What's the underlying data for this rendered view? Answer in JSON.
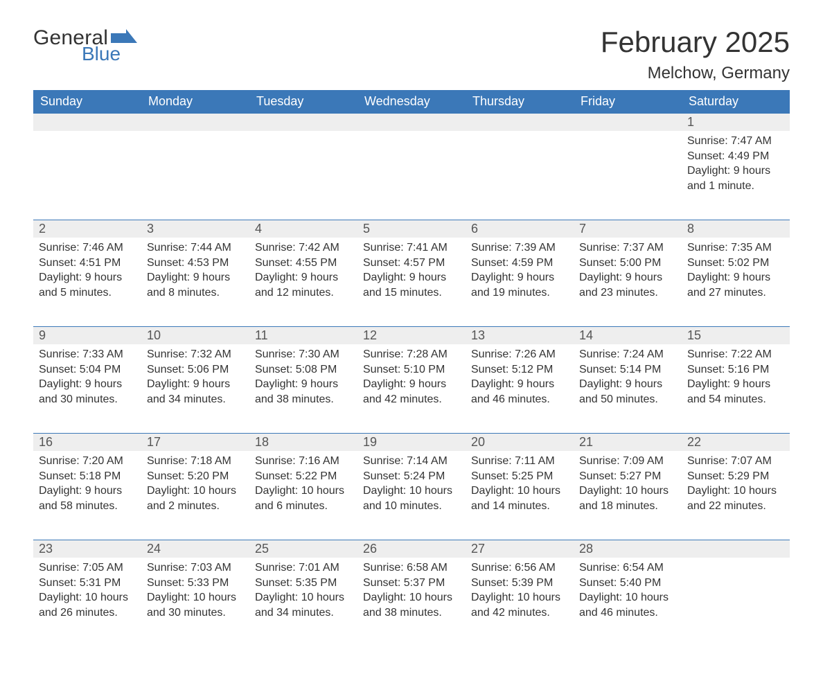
{
  "brand": {
    "word1": "General",
    "word2": "Blue",
    "accent_color": "#3b78b8",
    "text_color": "#333333"
  },
  "title": {
    "month_year": "February 2025",
    "location": "Melchow, Germany",
    "title_fontsize": 42,
    "location_fontsize": 24
  },
  "style": {
    "header_bg": "#3b78b8",
    "header_fg": "#ffffff",
    "daynum_bg": "#eeeeee",
    "row_border": "#3b78b8",
    "body_bg": "#ffffff",
    "body_fg": "#333333",
    "cell_fontsize": 16,
    "header_fontsize": 18,
    "daynum_fontsize": 18
  },
  "columns": [
    "Sunday",
    "Monday",
    "Tuesday",
    "Wednesday",
    "Thursday",
    "Friday",
    "Saturday"
  ],
  "weeks": [
    [
      null,
      null,
      null,
      null,
      null,
      null,
      {
        "n": "1",
        "sunrise": "Sunrise: 7:47 AM",
        "sunset": "Sunset: 4:49 PM",
        "daylight": "Daylight: 9 hours and 1 minute."
      }
    ],
    [
      {
        "n": "2",
        "sunrise": "Sunrise: 7:46 AM",
        "sunset": "Sunset: 4:51 PM",
        "daylight": "Daylight: 9 hours and 5 minutes."
      },
      {
        "n": "3",
        "sunrise": "Sunrise: 7:44 AM",
        "sunset": "Sunset: 4:53 PM",
        "daylight": "Daylight: 9 hours and 8 minutes."
      },
      {
        "n": "4",
        "sunrise": "Sunrise: 7:42 AM",
        "sunset": "Sunset: 4:55 PM",
        "daylight": "Daylight: 9 hours and 12 minutes."
      },
      {
        "n": "5",
        "sunrise": "Sunrise: 7:41 AM",
        "sunset": "Sunset: 4:57 PM",
        "daylight": "Daylight: 9 hours and 15 minutes."
      },
      {
        "n": "6",
        "sunrise": "Sunrise: 7:39 AM",
        "sunset": "Sunset: 4:59 PM",
        "daylight": "Daylight: 9 hours and 19 minutes."
      },
      {
        "n": "7",
        "sunrise": "Sunrise: 7:37 AM",
        "sunset": "Sunset: 5:00 PM",
        "daylight": "Daylight: 9 hours and 23 minutes."
      },
      {
        "n": "8",
        "sunrise": "Sunrise: 7:35 AM",
        "sunset": "Sunset: 5:02 PM",
        "daylight": "Daylight: 9 hours and 27 minutes."
      }
    ],
    [
      {
        "n": "9",
        "sunrise": "Sunrise: 7:33 AM",
        "sunset": "Sunset: 5:04 PM",
        "daylight": "Daylight: 9 hours and 30 minutes."
      },
      {
        "n": "10",
        "sunrise": "Sunrise: 7:32 AM",
        "sunset": "Sunset: 5:06 PM",
        "daylight": "Daylight: 9 hours and 34 minutes."
      },
      {
        "n": "11",
        "sunrise": "Sunrise: 7:30 AM",
        "sunset": "Sunset: 5:08 PM",
        "daylight": "Daylight: 9 hours and 38 minutes."
      },
      {
        "n": "12",
        "sunrise": "Sunrise: 7:28 AM",
        "sunset": "Sunset: 5:10 PM",
        "daylight": "Daylight: 9 hours and 42 minutes."
      },
      {
        "n": "13",
        "sunrise": "Sunrise: 7:26 AM",
        "sunset": "Sunset: 5:12 PM",
        "daylight": "Daylight: 9 hours and 46 minutes."
      },
      {
        "n": "14",
        "sunrise": "Sunrise: 7:24 AM",
        "sunset": "Sunset: 5:14 PM",
        "daylight": "Daylight: 9 hours and 50 minutes."
      },
      {
        "n": "15",
        "sunrise": "Sunrise: 7:22 AM",
        "sunset": "Sunset: 5:16 PM",
        "daylight": "Daylight: 9 hours and 54 minutes."
      }
    ],
    [
      {
        "n": "16",
        "sunrise": "Sunrise: 7:20 AM",
        "sunset": "Sunset: 5:18 PM",
        "daylight": "Daylight: 9 hours and 58 minutes."
      },
      {
        "n": "17",
        "sunrise": "Sunrise: 7:18 AM",
        "sunset": "Sunset: 5:20 PM",
        "daylight": "Daylight: 10 hours and 2 minutes."
      },
      {
        "n": "18",
        "sunrise": "Sunrise: 7:16 AM",
        "sunset": "Sunset: 5:22 PM",
        "daylight": "Daylight: 10 hours and 6 minutes."
      },
      {
        "n": "19",
        "sunrise": "Sunrise: 7:14 AM",
        "sunset": "Sunset: 5:24 PM",
        "daylight": "Daylight: 10 hours and 10 minutes."
      },
      {
        "n": "20",
        "sunrise": "Sunrise: 7:11 AM",
        "sunset": "Sunset: 5:25 PM",
        "daylight": "Daylight: 10 hours and 14 minutes."
      },
      {
        "n": "21",
        "sunrise": "Sunrise: 7:09 AM",
        "sunset": "Sunset: 5:27 PM",
        "daylight": "Daylight: 10 hours and 18 minutes."
      },
      {
        "n": "22",
        "sunrise": "Sunrise: 7:07 AM",
        "sunset": "Sunset: 5:29 PM",
        "daylight": "Daylight: 10 hours and 22 minutes."
      }
    ],
    [
      {
        "n": "23",
        "sunrise": "Sunrise: 7:05 AM",
        "sunset": "Sunset: 5:31 PM",
        "daylight": "Daylight: 10 hours and 26 minutes."
      },
      {
        "n": "24",
        "sunrise": "Sunrise: 7:03 AM",
        "sunset": "Sunset: 5:33 PM",
        "daylight": "Daylight: 10 hours and 30 minutes."
      },
      {
        "n": "25",
        "sunrise": "Sunrise: 7:01 AM",
        "sunset": "Sunset: 5:35 PM",
        "daylight": "Daylight: 10 hours and 34 minutes."
      },
      {
        "n": "26",
        "sunrise": "Sunrise: 6:58 AM",
        "sunset": "Sunset: 5:37 PM",
        "daylight": "Daylight: 10 hours and 38 minutes."
      },
      {
        "n": "27",
        "sunrise": "Sunrise: 6:56 AM",
        "sunset": "Sunset: 5:39 PM",
        "daylight": "Daylight: 10 hours and 42 minutes."
      },
      {
        "n": "28",
        "sunrise": "Sunrise: 6:54 AM",
        "sunset": "Sunset: 5:40 PM",
        "daylight": "Daylight: 10 hours and 46 minutes."
      },
      null
    ]
  ]
}
